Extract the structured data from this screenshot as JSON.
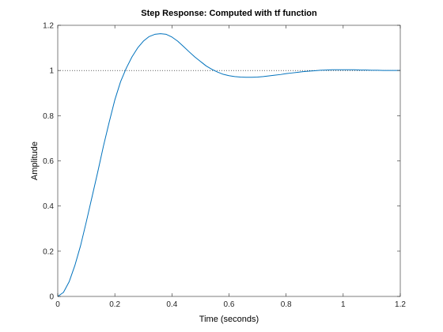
{
  "chart_data": {
    "type": "line",
    "title": "Step Response: Computed with tf function",
    "xlabel": "Time (seconds)",
    "ylabel": "Amplitude",
    "xlim": [
      0,
      1.2
    ],
    "ylim": [
      0,
      1.2
    ],
    "xticks": [
      "0",
      "0.2",
      "0.4",
      "0.6",
      "0.8",
      "1",
      "1.2"
    ],
    "yticks": [
      "0",
      "0.2",
      "0.4",
      "0.6",
      "0.8",
      "1",
      "1.2"
    ],
    "grid": false,
    "reference_line": {
      "y": 1,
      "style": "dotted"
    },
    "series": [
      {
        "color": "#0072bd",
        "x": [
          0,
          0.02,
          0.04,
          0.06,
          0.08,
          0.1,
          0.12,
          0.14,
          0.16,
          0.18,
          0.2,
          0.22,
          0.24,
          0.26,
          0.28,
          0.3,
          0.32,
          0.34,
          0.36,
          0.38,
          0.4,
          0.42,
          0.44,
          0.46,
          0.48,
          0.5,
          0.52,
          0.54,
          0.56,
          0.58,
          0.6,
          0.62,
          0.64,
          0.66,
          0.68,
          0.7,
          0.72,
          0.74,
          0.76,
          0.78,
          0.8,
          0.82,
          0.84,
          0.86,
          0.88,
          0.9,
          0.92,
          0.94,
          0.96,
          0.98,
          1.0,
          1.02,
          1.04,
          1.06,
          1.08,
          1.1,
          1.12,
          1.14,
          1.16,
          1.18,
          1.2
        ],
        "y": [
          0,
          0.018,
          0.065,
          0.137,
          0.225,
          0.33,
          0.44,
          0.55,
          0.665,
          0.77,
          0.87,
          0.95,
          1.01,
          1.06,
          1.1,
          1.13,
          1.15,
          1.16,
          1.163,
          1.16,
          1.148,
          1.13,
          1.107,
          1.083,
          1.06,
          1.04,
          1.02,
          1.005,
          0.993,
          0.983,
          0.977,
          0.973,
          0.971,
          0.97,
          0.97,
          0.971,
          0.973,
          0.976,
          0.979,
          0.982,
          0.986,
          0.989,
          0.992,
          0.995,
          0.997,
          0.999,
          1.001,
          1.002,
          1.003,
          1.003,
          1.003,
          1.003,
          1.003,
          1.002,
          1.002,
          1.001,
          1.001,
          1.0,
          1.0,
          1.0,
          1.0
        ]
      }
    ]
  }
}
